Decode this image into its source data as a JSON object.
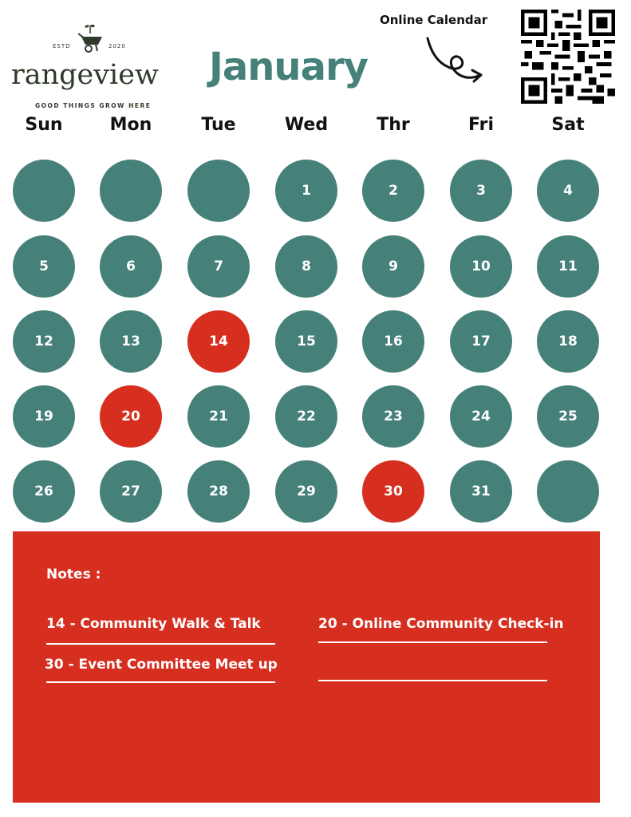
{
  "logo": {
    "estd_left": "ESTD",
    "estd_right": "2020",
    "brand": "rangeview",
    "tagline": "GOOD THINGS GROW HERE"
  },
  "header": {
    "month": "January",
    "online_label": "Online Calendar"
  },
  "weekdays": [
    "Sun",
    "Mon",
    "Tue",
    "Wed",
    "Thr",
    "Fri",
    "Sat"
  ],
  "weeks": [
    [
      "",
      "",
      "",
      "1",
      "2",
      "3",
      "4"
    ],
    [
      "5",
      "6",
      "7",
      "8",
      "9",
      "10",
      "11"
    ],
    [
      "12",
      "13",
      "14",
      "15",
      "16",
      "17",
      "18"
    ],
    [
      "19",
      "20",
      "21",
      "22",
      "23",
      "24",
      "25"
    ],
    [
      "26",
      "27",
      "28",
      "29",
      "30",
      "31",
      ""
    ]
  ],
  "highlighted_days": [
    "14",
    "20",
    "30"
  ],
  "colors": {
    "teal": "#458079",
    "red": "#d62f1f",
    "dark_green": "#2e3a2a"
  },
  "notes": {
    "title": "Notes :",
    "items": [
      "14 - Community Walk & Talk",
      "20 - Online Community Check-in",
      "30 - Event Committee Meet up"
    ]
  }
}
